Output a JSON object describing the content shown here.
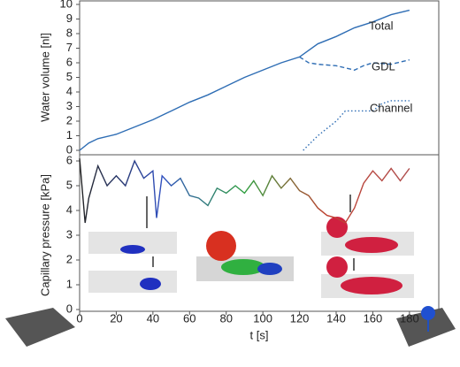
{
  "chart_data": [
    {
      "type": "line",
      "y_label": "Water volume [nl]",
      "ylim": [
        0,
        10
      ],
      "yticks": [
        0,
        1,
        2,
        3,
        4,
        5,
        6,
        7,
        8,
        9,
        10
      ],
      "xlim": [
        0,
        196
      ],
      "series": [
        {
          "name": "Total",
          "color": "#2e6db4",
          "dash": "solid",
          "x": [
            0,
            5,
            10,
            20,
            30,
            40,
            50,
            60,
            70,
            80,
            90,
            100,
            110,
            120,
            130,
            140,
            150,
            160,
            170,
            180
          ],
          "values": [
            0,
            0.5,
            0.8,
            1.1,
            1.6,
            2.1,
            2.7,
            3.3,
            3.8,
            4.4,
            5.0,
            5.5,
            6.0,
            6.4,
            7.3,
            7.8,
            8.4,
            8.8,
            9.3,
            9.6
          ]
        },
        {
          "name": "GDL",
          "color": "#2e6db4",
          "dash": "dashed",
          "x": [
            120,
            125,
            130,
            140,
            150,
            155,
            160,
            170,
            180
          ],
          "values": [
            6.4,
            6.0,
            5.9,
            5.8,
            5.5,
            5.8,
            6.0,
            5.9,
            6.2
          ]
        },
        {
          "name": "Channel",
          "color": "#2e6db4",
          "dash": "dotted",
          "x": [
            122,
            130,
            140,
            145,
            160,
            165,
            170,
            180
          ],
          "values": [
            0,
            1.0,
            2.0,
            2.7,
            2.7,
            3.2,
            3.4,
            3.4
          ]
        }
      ]
    },
    {
      "type": "line",
      "y_label": "Capillary pressure [kPa]",
      "x_label": "t [s]",
      "ylim": [
        0,
        6
      ],
      "yticks": [
        0,
        1,
        2,
        3,
        4,
        5,
        6
      ],
      "xlim": [
        0,
        196
      ],
      "xticks": [
        0,
        20,
        40,
        60,
        80,
        100,
        120,
        140,
        160,
        180
      ],
      "series": [
        {
          "color_stops": [
            "#222222",
            "#3050c0",
            "#30a040",
            "#c04030",
            "#b05050"
          ],
          "dash": "solid",
          "x": [
            0,
            3,
            5,
            10,
            15,
            20,
            25,
            30,
            35,
            40,
            42,
            45,
            50,
            55,
            60,
            65,
            70,
            75,
            80,
            85,
            90,
            95,
            100,
            105,
            110,
            115,
            120,
            125,
            130,
            135,
            140,
            145,
            150,
            155,
            160,
            165,
            170,
            175,
            180
          ],
          "values": [
            6.1,
            3.5,
            4.5,
            5.8,
            5.0,
            5.4,
            5.0,
            6.0,
            5.3,
            5.6,
            3.7,
            5.4,
            5.0,
            5.3,
            4.6,
            4.5,
            4.2,
            4.9,
            4.7,
            5.0,
            4.7,
            5.2,
            4.6,
            5.4,
            4.9,
            5.3,
            4.8,
            4.6,
            4.1,
            3.8,
            3.7,
            3.5,
            4.1,
            5.1,
            5.6,
            5.2,
            5.7,
            5.2,
            5.7
          ]
        }
      ]
    }
  ]
}
